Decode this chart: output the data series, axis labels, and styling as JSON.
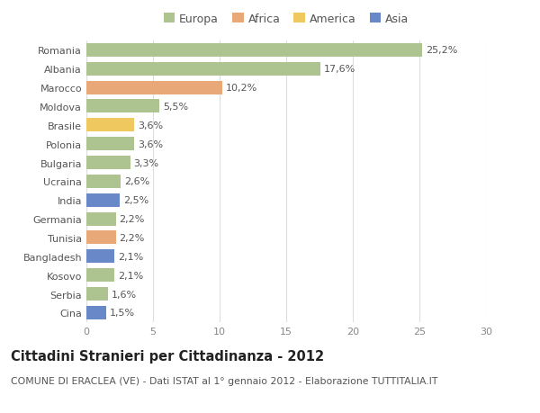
{
  "categories": [
    "Romania",
    "Albania",
    "Marocco",
    "Moldova",
    "Brasile",
    "Polonia",
    "Bulgaria",
    "Ucraina",
    "India",
    "Germania",
    "Tunisia",
    "Bangladesh",
    "Kosovo",
    "Serbia",
    "Cina"
  ],
  "values": [
    25.2,
    17.6,
    10.2,
    5.5,
    3.6,
    3.6,
    3.3,
    2.6,
    2.5,
    2.2,
    2.2,
    2.1,
    2.1,
    1.6,
    1.5
  ],
  "labels": [
    "25,2%",
    "17,6%",
    "10,2%",
    "5,5%",
    "3,6%",
    "3,6%",
    "3,3%",
    "2,6%",
    "2,5%",
    "2,2%",
    "2,2%",
    "2,1%",
    "2,1%",
    "1,6%",
    "1,5%"
  ],
  "continents": [
    "Europa",
    "Europa",
    "Africa",
    "Europa",
    "America",
    "Europa",
    "Europa",
    "Europa",
    "Asia",
    "Europa",
    "Africa",
    "Asia",
    "Europa",
    "Europa",
    "Asia"
  ],
  "colors": {
    "Europa": "#adc490",
    "Africa": "#e8a878",
    "America": "#f0c860",
    "Asia": "#6888c8"
  },
  "title": "Cittadini Stranieri per Cittadinanza - 2012",
  "subtitle": "COMUNE DI ERACLEA (VE) - Dati ISTAT al 1° gennaio 2012 - Elaborazione TUTTITALIA.IT",
  "xlim": [
    0,
    30
  ],
  "xticks": [
    0,
    5,
    10,
    15,
    20,
    25,
    30
  ],
  "bg_color": "#ffffff",
  "grid_color": "#dddddd",
  "bar_height": 0.72,
  "label_fontsize": 8,
  "tick_fontsize": 8,
  "title_fontsize": 10.5,
  "subtitle_fontsize": 7.8,
  "legend_order": [
    "Europa",
    "Africa",
    "America",
    "Asia"
  ]
}
